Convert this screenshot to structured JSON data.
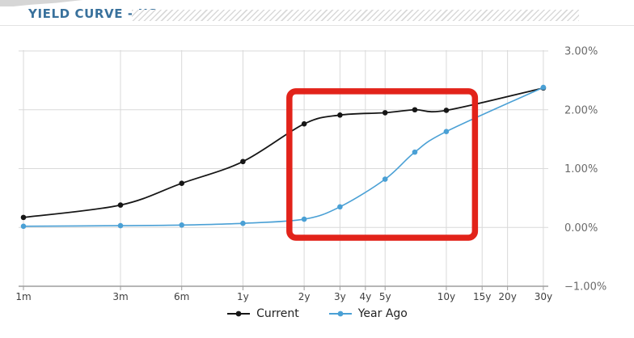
{
  "page": {
    "title": "YIELD CURVE - US"
  },
  "chart_data": {
    "type": "line",
    "title": "YIELD CURVE - US",
    "grid": true,
    "legend_position": "bottom",
    "x_axis": {
      "scale": "log-months",
      "ticks": [
        {
          "months": 1,
          "label": "1m"
        },
        {
          "months": 3,
          "label": "3m"
        },
        {
          "months": 6,
          "label": "6m"
        },
        {
          "months": 12,
          "label": "1y"
        },
        {
          "months": 24,
          "label": "2y"
        },
        {
          "months": 36,
          "label": "3y"
        },
        {
          "months": 48,
          "label": "4y"
        },
        {
          "months": 60,
          "label": "5y"
        },
        {
          "months": 120,
          "label": "10y"
        },
        {
          "months": 180,
          "label": "15y"
        },
        {
          "months": 240,
          "label": "20y"
        },
        {
          "months": 360,
          "label": "30y"
        }
      ]
    },
    "y_axis": {
      "position": "right",
      "min": -1,
      "max": 3,
      "step": 1,
      "ticks": [
        {
          "value": 3,
          "label": "3.00%"
        },
        {
          "value": 2,
          "label": "2.00%"
        },
        {
          "value": 1,
          "label": "1.00%"
        },
        {
          "value": 0,
          "label": "0.00%"
        },
        {
          "value": -1,
          "label": "−1.00%"
        }
      ]
    },
    "series": [
      {
        "name": "Current",
        "color": "#161616",
        "months": [
          1,
          3,
          6,
          12,
          24,
          36,
          60,
          84,
          120,
          360
        ],
        "values": [
          0.17,
          0.38,
          0.75,
          1.12,
          1.76,
          1.91,
          1.95,
          2.0,
          1.99,
          2.37
        ]
      },
      {
        "name": "Year Ago",
        "color": "#4aa0d5",
        "months": [
          1,
          3,
          6,
          12,
          24,
          36,
          60,
          84,
          120,
          360
        ],
        "values": [
          0.02,
          0.03,
          0.04,
          0.07,
          0.14,
          0.35,
          0.82,
          1.28,
          1.63,
          2.38
        ]
      }
    ],
    "annotation": {
      "type": "rect",
      "color": "#e2231a",
      "months_from": 20.3,
      "months_to": 166,
      "value_from": -0.175,
      "value_to": 2.315
    }
  }
}
